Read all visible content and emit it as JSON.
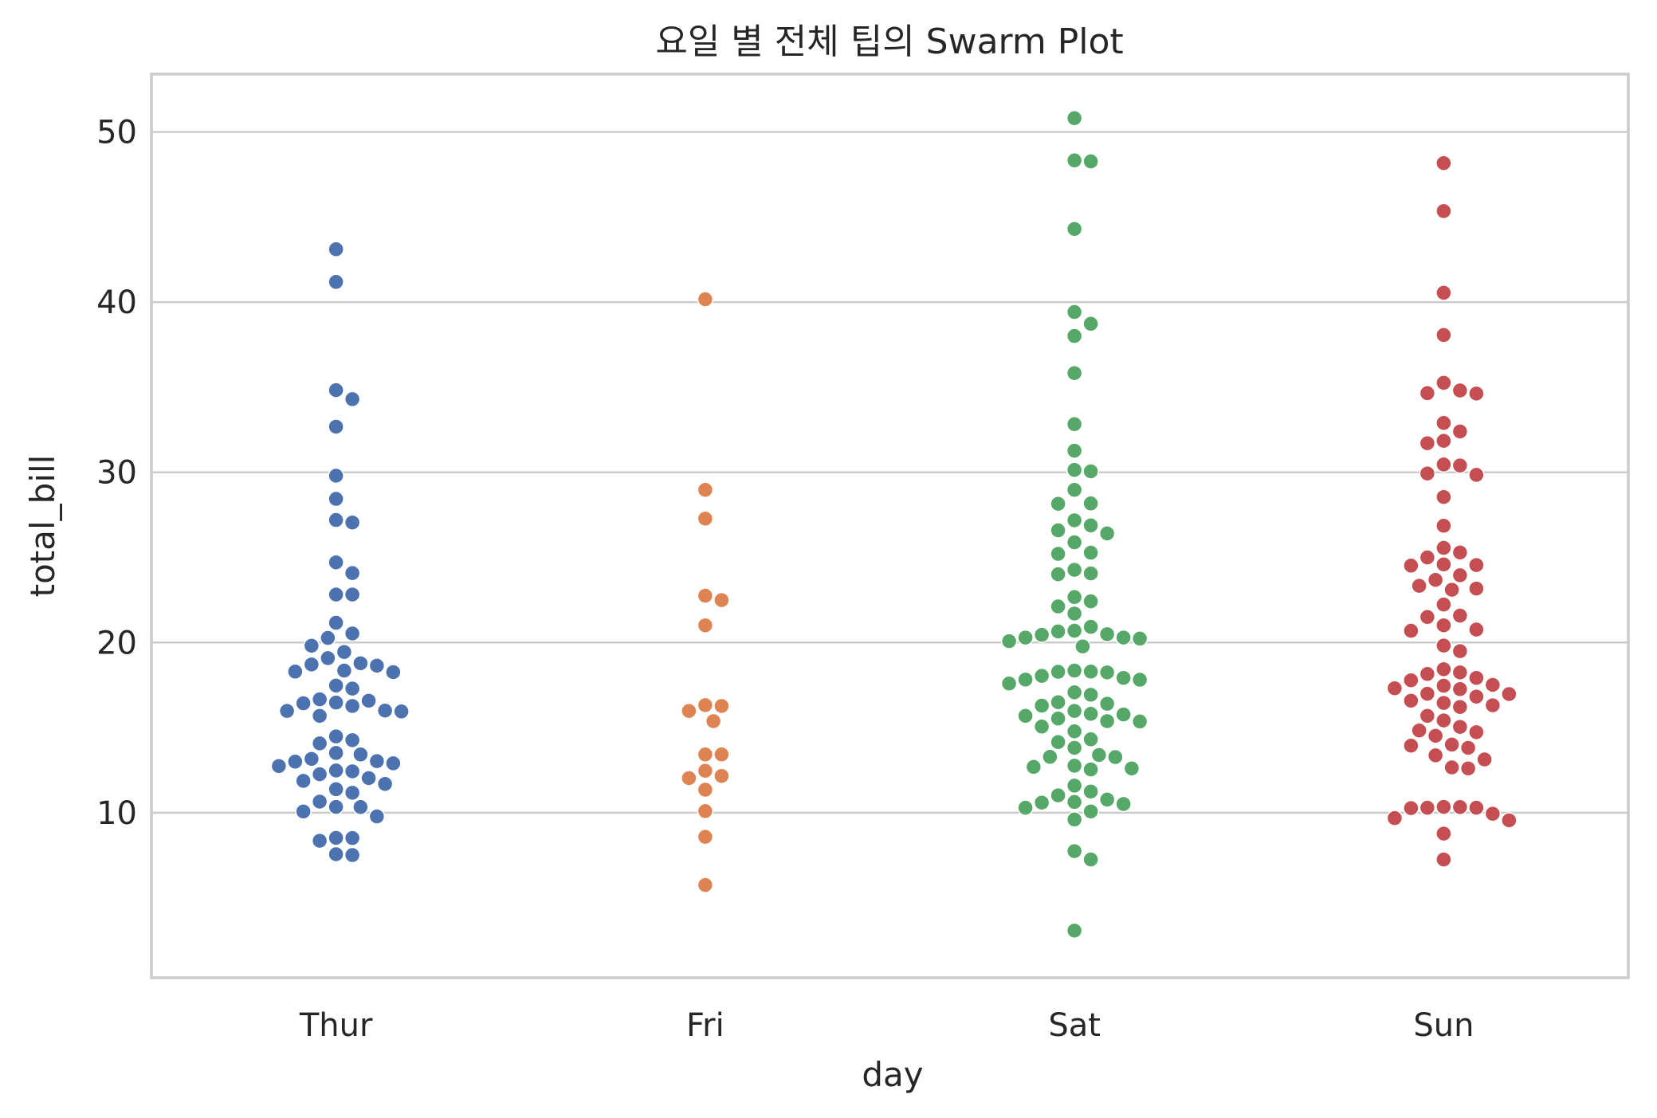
{
  "chart_data": {
    "type": "scatter",
    "subtype": "swarm",
    "title": "요일 별 전체 팁의 Swarm Plot",
    "xlabel": "day",
    "ylabel": "total_bill",
    "categories": [
      "Thur",
      "Fri",
      "Sat",
      "Sun"
    ],
    "ylim": [
      0.3,
      53.4
    ],
    "yticks": [
      10,
      20,
      30,
      40,
      50
    ],
    "grid": "y",
    "legend": "none",
    "colors": [
      "#4c72b0",
      "#dd8452",
      "#55a868",
      "#c44e52"
    ],
    "series": [
      {
        "category": "Thur",
        "values": [
          43.11,
          41.19,
          34.83,
          34.3,
          32.68,
          29.8,
          28.44,
          27.2,
          27.05,
          24.71,
          24.08,
          22.82,
          22.82,
          21.16,
          20.53,
          20.27,
          19.81,
          19.44,
          19.08,
          18.78,
          18.71,
          18.64,
          18.35,
          18.29,
          18.26,
          17.29,
          17.47,
          16.66,
          16.58,
          16.47,
          16.43,
          16.27,
          16.0,
          15.98,
          15.95,
          15.69,
          14.48,
          14.26,
          14.07,
          13.51,
          13.42,
          13.16,
          13.03,
          13.0,
          12.9,
          12.74,
          12.48,
          12.43,
          12.26,
          12.03,
          11.87,
          11.69,
          11.38,
          11.17,
          10.65,
          10.34,
          10.33,
          10.07,
          9.78,
          8.52,
          8.51,
          8.35,
          7.56,
          7.51
        ]
      },
      {
        "category": "Fri",
        "values": [
          40.17,
          28.97,
          27.28,
          22.75,
          22.49,
          21.01,
          16.32,
          16.27,
          15.98,
          15.38,
          13.42,
          13.42,
          12.46,
          12.16,
          12.03,
          11.35,
          10.09,
          8.58,
          5.75
        ]
      },
      {
        "category": "Sat",
        "values": [
          50.81,
          48.33,
          48.27,
          44.3,
          39.42,
          38.73,
          38.01,
          35.83,
          32.83,
          31.27,
          30.14,
          30.06,
          28.97,
          28.15,
          28.17,
          27.18,
          26.88,
          26.59,
          26.41,
          25.89,
          25.28,
          25.21,
          24.27,
          24.06,
          24.01,
          22.67,
          22.42,
          22.12,
          21.7,
          20.92,
          20.69,
          20.65,
          20.49,
          20.45,
          20.29,
          20.23,
          20.29,
          20.08,
          19.77,
          18.35,
          18.29,
          18.24,
          18.28,
          18.04,
          17.92,
          17.82,
          17.81,
          17.59,
          17.07,
          16.93,
          16.49,
          16.4,
          16.29,
          15.98,
          15.81,
          15.77,
          15.69,
          15.53,
          15.38,
          15.36,
          15.06,
          14.78,
          14.31,
          14.15,
          13.81,
          13.39,
          13.28,
          13.27,
          12.76,
          12.69,
          12.6,
          12.54,
          11.59,
          11.24,
          11.02,
          10.77,
          10.63,
          10.59,
          10.51,
          10.29,
          10.07,
          9.6,
          7.74,
          7.25,
          3.07
        ]
      },
      {
        "category": "Sun",
        "values": [
          48.17,
          45.35,
          40.55,
          38.07,
          35.26,
          34.81,
          34.65,
          34.63,
          32.9,
          32.4,
          31.85,
          31.71,
          30.46,
          30.4,
          29.93,
          29.85,
          28.55,
          26.86,
          25.56,
          25.29,
          25.0,
          24.59,
          24.55,
          24.52,
          23.95,
          23.68,
          23.33,
          23.17,
          23.1,
          22.23,
          21.58,
          21.5,
          21.01,
          20.76,
          20.69,
          19.82,
          19.49,
          18.43,
          18.24,
          18.15,
          17.92,
          17.78,
          17.51,
          17.46,
          17.26,
          17.31,
          16.97,
          16.99,
          16.82,
          16.58,
          16.45,
          16.31,
          16.21,
          15.42,
          15.69,
          15.04,
          14.83,
          14.73,
          14.52,
          14.0,
          13.94,
          13.81,
          13.37,
          13.13,
          12.66,
          12.6,
          10.34,
          10.33,
          10.29,
          10.27,
          9.94,
          9.68,
          9.55,
          8.77,
          7.25,
          10.29
        ]
      }
    ]
  }
}
